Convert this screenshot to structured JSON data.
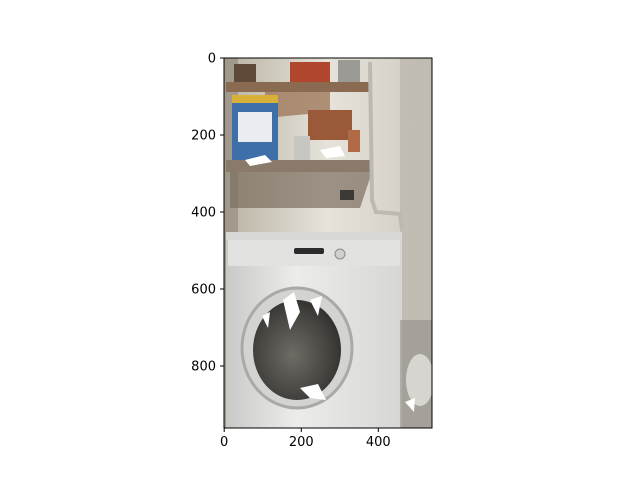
{
  "figure": {
    "type": "image_with_axes",
    "description_note": "",
    "x_ticks": [
      "0",
      "200",
      "400"
    ],
    "y_ticks": [
      "0",
      "200",
      "400",
      "600",
      "800"
    ],
    "x_extent": [
      0,
      540
    ],
    "y_extent": [
      960,
      0
    ]
  },
  "colors": {
    "axis": "#000000",
    "wall": "#d9d6cc",
    "machine": "#e8e8e6",
    "shelf": "#8a6a50",
    "drum_dark": "#5a5a58"
  },
  "chart_data": {
    "type": "image",
    "x_tick_values": [
      0,
      200,
      400
    ],
    "y_tick_values": [
      0,
      200,
      400,
      600,
      800
    ],
    "xlim": [
      0,
      540
    ],
    "ylim": [
      960,
      0
    ]
  }
}
